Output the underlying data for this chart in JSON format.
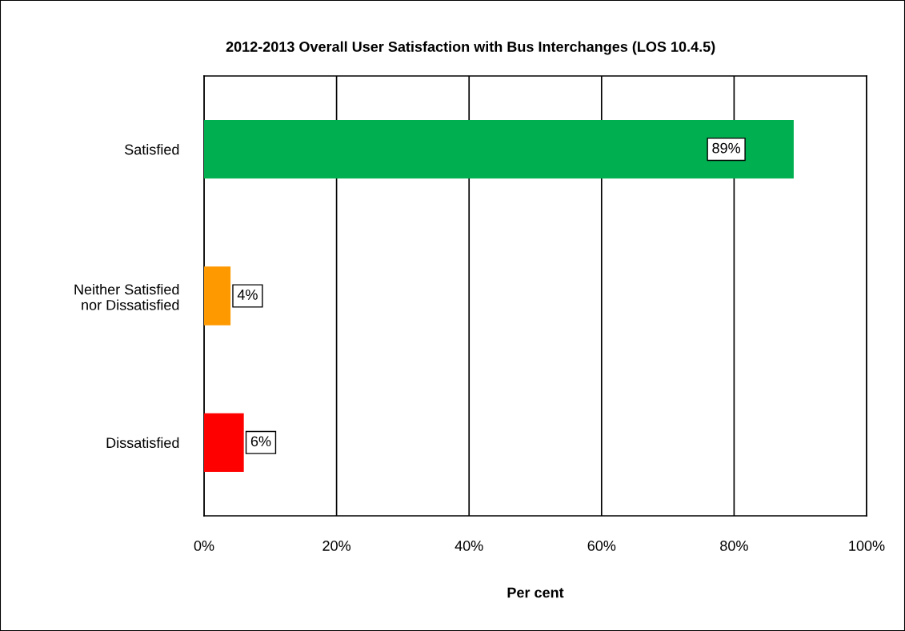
{
  "chart_data": {
    "type": "bar",
    "orientation": "horizontal",
    "title": "2012-2013 Overall User Satisfaction with Bus Interchanges (LOS 10.4.5)",
    "xlabel": "Per cent",
    "categories": [
      "Satisfied",
      "Neither Satisfied\nnor Dissatisfied",
      "Dissatisfied"
    ],
    "values": [
      89,
      4,
      6
    ],
    "colors": [
      "#00b050",
      "#ff9900",
      "#ff0000"
    ],
    "value_labels": [
      "89%",
      "4%",
      "6%"
    ],
    "xlim": [
      0,
      100
    ],
    "xticks": [
      {
        "value": 0,
        "label": "0%"
      },
      {
        "value": 20,
        "label": "20%"
      },
      {
        "value": 40,
        "label": "40%"
      },
      {
        "value": 60,
        "label": "60%"
      },
      {
        "value": 80,
        "label": "80%"
      },
      {
        "value": 100,
        "label": "100%"
      }
    ],
    "grid": "x",
    "legend": false
  }
}
